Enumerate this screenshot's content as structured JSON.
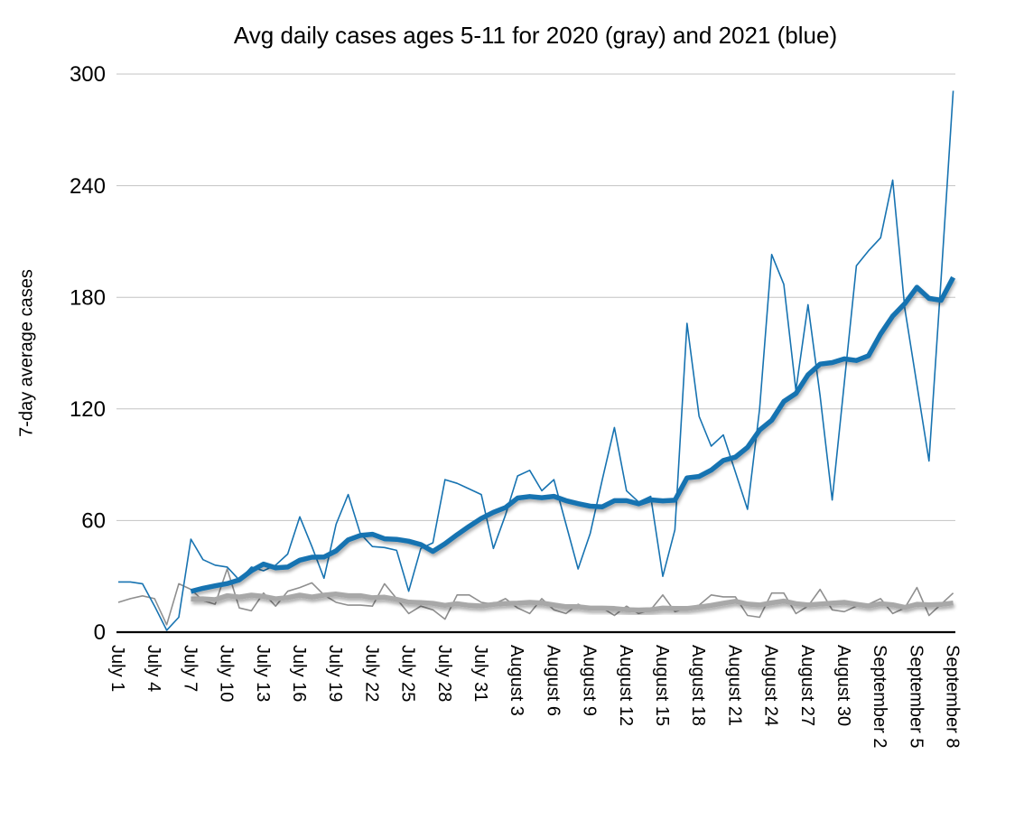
{
  "page": {
    "background": "#ffffff"
  },
  "chart_data": {
    "type": "line",
    "title": "Avg daily cases ages 5-11 for 2020 (gray) and 2021 (blue)",
    "xlabel": "",
    "ylabel": "7-day average cases",
    "ylim": [
      0,
      300
    ],
    "yticks": [
      0,
      60,
      120,
      180,
      240,
      300
    ],
    "grid": "horizontal only",
    "legend_position": "none",
    "n_points": 70,
    "x_tick_every": 3,
    "x_tick_labels": [
      "July 1",
      "July 4",
      "July 7",
      "July 10",
      "July 13",
      "July 16",
      "July 19",
      "July 22",
      "July 25",
      "July 28",
      "July 31",
      "August 3",
      "August 6",
      "August 9",
      "August 12",
      "August 15",
      "August 18",
      "August 21",
      "August 24",
      "August 27",
      "August 30",
      "September 2",
      "September 5",
      "September 8"
    ],
    "colors": {
      "blue": "#1773b1",
      "gray_daily": "#8f8f8f",
      "gray_avg": "#a8a8a8",
      "grid": "#c3c3c3",
      "axis": "#000000"
    },
    "series": [
      {
        "name": "2020 daily cases",
        "role": "daily",
        "color_key": "gray_daily",
        "start_index": 0,
        "values": [
          16,
          18,
          19.5,
          18,
          4,
          26,
          23,
          17,
          15,
          34,
          13,
          11.5,
          21,
          14,
          22,
          24,
          26.5,
          20,
          16,
          14.5,
          14.5,
          14,
          26,
          18,
          10,
          14,
          12,
          7,
          20,
          20,
          16,
          15,
          18,
          13,
          10,
          18,
          12,
          10,
          15,
          12,
          13,
          9,
          14,
          10,
          12,
          20,
          11,
          13,
          14.5,
          20,
          19,
          19,
          9,
          8,
          21,
          21,
          10,
          14,
          23,
          12,
          11,
          14,
          15,
          18,
          10,
          13,
          24,
          9,
          15,
          21
        ]
      },
      {
        "name": "2021 daily cases",
        "role": "daily",
        "color_key": "blue",
        "start_index": 0,
        "values": [
          27,
          27,
          26,
          14,
          1,
          8,
          50,
          39,
          36,
          35,
          28,
          35,
          33,
          36,
          42,
          62,
          46,
          29,
          58,
          74,
          53,
          46,
          45.5,
          44,
          22,
          45,
          48,
          82,
          80,
          77,
          74,
          45,
          63,
          84,
          87,
          76,
          82,
          58,
          34,
          53,
          82,
          110,
          76,
          70,
          73,
          30,
          55,
          166,
          116,
          100,
          106,
          86,
          66,
          120,
          203,
          187,
          130,
          176,
          127,
          71,
          134,
          197,
          205,
          212,
          243,
          174,
          133,
          92,
          190,
          291
        ]
      },
      {
        "name": "2020 7-day average",
        "role": "average",
        "color_key": "gray_avg",
        "start_index": 6,
        "values": [
          17.8,
          17.9,
          17.5,
          19.6,
          18.9,
          19.9,
          19.2,
          17.9,
          18.6,
          19.9,
          18.9,
          19.9,
          20.5,
          19.6,
          19.6,
          18.5,
          18.8,
          17.6,
          16.1,
          15.9,
          15.5,
          14.4,
          15.3,
          14.4,
          14.1,
          14.9,
          15.4,
          15.6,
          16.0,
          15.7,
          14.6,
          13.7,
          13.7,
          12.9,
          12.9,
          12.7,
          12.1,
          11.9,
          12.1,
          12.9,
          12.7,
          12.7,
          13.5,
          14.4,
          15.6,
          16.6,
          15.1,
          14.6,
          15.8,
          16.7,
          15.3,
          14.6,
          15.1,
          15.6,
          16.0,
          15.0,
          14.1,
          15.3,
          14.7,
          13.3,
          15.0,
          14.7,
          14.9,
          15.7
        ]
      },
      {
        "name": "2021 7-day average",
        "role": "average",
        "color_key": "blue",
        "start_index": 6,
        "values": [
          21.9,
          23.6,
          24.9,
          26.1,
          28.1,
          33.0,
          36.6,
          34.6,
          35.0,
          38.7,
          40.3,
          40.4,
          43.7,
          49.6,
          52.0,
          52.6,
          50.2,
          49.9,
          48.9,
          47.1,
          43.4,
          47.5,
          52.4,
          56.9,
          61.1,
          64.4,
          67.0,
          72.1,
          72.9,
          72.3,
          73.0,
          70.7,
          69.1,
          67.7,
          67.4,
          70.7,
          70.7,
          69.0,
          71.1,
          70.6,
          70.9,
          82.9,
          83.7,
          87.1,
          92.3,
          94.1,
          99.3,
          108.6,
          113.9,
          124.0,
          128.3,
          138.3,
          144.1,
          144.9,
          146.9,
          146.0,
          148.6,
          160.3,
          169.9,
          176.6,
          185.4,
          179.4,
          178.4,
          190.7
        ]
      }
    ]
  }
}
